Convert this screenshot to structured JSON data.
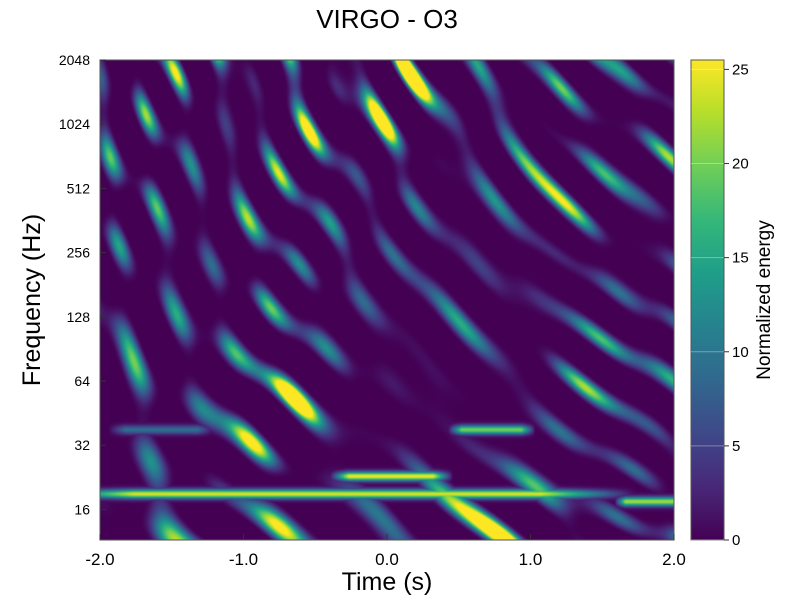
{
  "chart_data": {
    "type": "heatmap",
    "title": "VIRGO - O3",
    "xlabel": "Time (s)",
    "ylabel": "Frequency (Hz)",
    "xlim": [
      -2.0,
      2.0
    ],
    "ylim": [
      11.5,
      2048
    ],
    "yscale": "log2",
    "x_ticks": [
      -2.0,
      -1.0,
      0.0,
      1.0,
      2.0
    ],
    "x_tick_labels": [
      "-2.0",
      "-1.0",
      "0.0",
      "1.0",
      "2.0"
    ],
    "y_ticks": [
      16,
      32,
      64,
      128,
      256,
      512,
      1024,
      2048
    ],
    "y_tick_labels": [
      "16",
      "32",
      "64",
      "128",
      "256",
      "512",
      "1024",
      "2048"
    ],
    "colorbar": {
      "label": "Normalized energy",
      "range": [
        0,
        25.5
      ],
      "ticks": [
        0,
        5,
        10,
        15,
        20,
        25
      ],
      "tick_labels": [
        "0",
        "5",
        "10",
        "15",
        "20",
        "25"
      ],
      "colormap": "viridis",
      "colors": [
        "#440154",
        "#482878",
        "#3e4989",
        "#31688e",
        "#26828e",
        "#1f9e89",
        "#35b779",
        "#6ece58",
        "#b5de2b",
        "#fde725"
      ]
    },
    "features": [
      {
        "label": "low-frequency band",
        "t_start": -2.0,
        "t_end": 1.3,
        "f_center": 19,
        "energy": 24
      },
      {
        "label": "blob near t=0",
        "t_start": -0.3,
        "t_end": 0.35,
        "f_center": 23,
        "energy": 25
      },
      {
        "label": "segment near t=0.7",
        "t_start": 0.5,
        "t_end": 0.95,
        "f_center": 38,
        "energy": 20
      },
      {
        "label": "segment at right edge",
        "t_start": 1.65,
        "t_end": 2.0,
        "f_center": 17.5,
        "energy": 22
      },
      {
        "label": "segment near t=-1.6",
        "t_start": -1.85,
        "t_end": -1.3,
        "f_center": 38,
        "energy": 9
      }
    ]
  }
}
